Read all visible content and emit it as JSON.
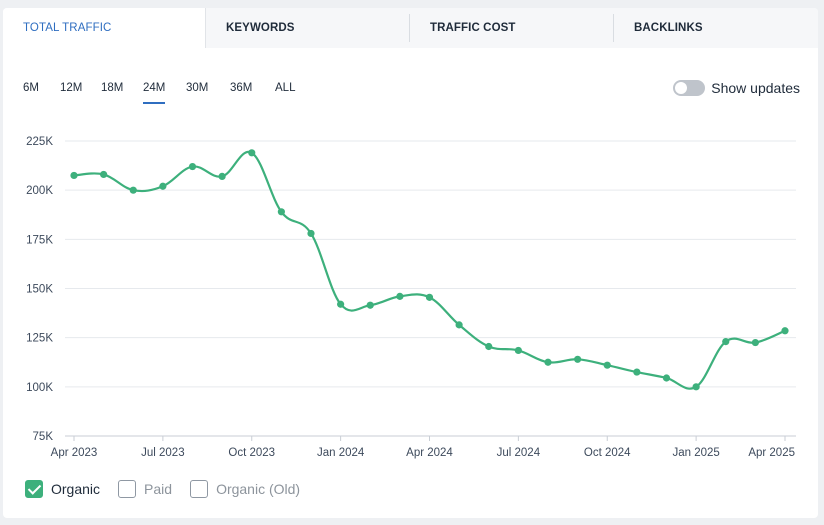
{
  "tabs": [
    {
      "label": "TOTAL TRAFFIC"
    },
    {
      "label": "KEYWORDS"
    },
    {
      "label": "TRAFFIC COST"
    },
    {
      "label": "BACKLINKS"
    }
  ],
  "periods": [
    {
      "label": "6M"
    },
    {
      "label": "12M"
    },
    {
      "label": "18M"
    },
    {
      "label": "24M"
    },
    {
      "label": "30M"
    },
    {
      "label": "36M"
    },
    {
      "label": "ALL"
    }
  ],
  "active_period": "24M",
  "show_updates": {
    "label": "Show updates",
    "enabled": false
  },
  "legend": [
    {
      "label": "Organic",
      "checked": true
    },
    {
      "label": "Paid",
      "checked": false
    },
    {
      "label": "Organic (Old)",
      "checked": false
    }
  ],
  "colors": {
    "accent": "#2f6ec0",
    "series": "#3db07c"
  },
  "chart_data": {
    "type": "line",
    "series": [
      {
        "name": "Organic",
        "values": [
          207500,
          208000,
          200000,
          202000,
          212000,
          207000,
          219000,
          189000,
          178000,
          142000,
          141500,
          146000,
          145500,
          131500,
          120500,
          118500,
          112500,
          114000,
          111000,
          107500,
          104500,
          100000,
          123000,
          122500,
          128500
        ]
      }
    ],
    "x": [
      "Apr 2023",
      "May 2023",
      "Jun 2023",
      "Jul 2023",
      "Aug 2023",
      "Sep 2023",
      "Oct 2023",
      "Nov 2023",
      "Dec 2023",
      "Jan 2024",
      "Feb 2024",
      "Mar 2024",
      "Apr 2024",
      "May 2024",
      "Jun 2024",
      "Jul 2024",
      "Aug 2024",
      "Sep 2024",
      "Oct 2024",
      "Nov 2024",
      "Dec 2024",
      "Jan 2025",
      "Feb 2025",
      "Mar 2025",
      "Apr 2025"
    ],
    "x_tick_labels": [
      "Apr 2023",
      "Jul 2023",
      "Oct 2023",
      "Jan 2024",
      "Apr 2024",
      "Jul 2024",
      "Oct 2024",
      "Jan 2025",
      "Apr 2025"
    ],
    "y_tick_labels": [
      "75K",
      "100K",
      "125K",
      "150K",
      "175K",
      "200K",
      "225K"
    ],
    "ylim": [
      75000,
      225000
    ],
    "grid": true,
    "legend_position": "bottom-left"
  }
}
